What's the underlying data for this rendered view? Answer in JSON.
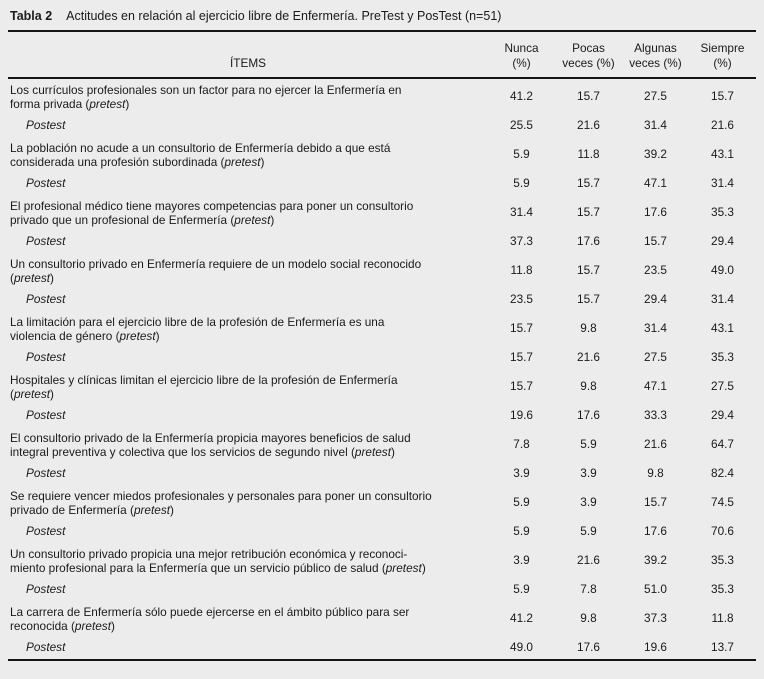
{
  "colors": {
    "background": "#ececec",
    "text": "#1a1a1a",
    "rule": "#141414"
  },
  "table": {
    "label": "Tabla 2",
    "title": "Actitudes en relación al ejercicio libre de Enfermería. PreTest y PosTest (n=51)",
    "items_header": "ÍTEMS",
    "columns": [
      {
        "line1": "Nunca",
        "line2": "(%)"
      },
      {
        "line1": "Pocas",
        "line2": "veces (%)"
      },
      {
        "line1": "Algunas",
        "line2": "veces (%)"
      },
      {
        "line1": "Siempre",
        "line2": "(%)"
      }
    ],
    "postest_label": "Postest",
    "items": [
      {
        "lines": [
          "Los currículos profesionales son un factor para no ejercer la Enfermería en",
          "forma privada (pretest)"
        ],
        "pretest": [
          "41.2",
          "15.7",
          "27.5",
          "15.7"
        ],
        "postest": [
          "25.5",
          "21.6",
          "31.4",
          "21.6"
        ]
      },
      {
        "lines": [
          "La población no acude a un consultorio de Enfermería debido a que está",
          "considerada una profesión subordinada (pretest)"
        ],
        "pretest": [
          "5.9",
          "11.8",
          "39.2",
          "43.1"
        ],
        "postest": [
          "5.9",
          "15.7",
          "47.1",
          "31.4"
        ]
      },
      {
        "lines": [
          "El profesional médico tiene mayores competencias para poner un consultorio",
          "privado que un profesional de Enfermería (pretest)"
        ],
        "pretest": [
          "31.4",
          "15.7",
          "17.6",
          "35.3"
        ],
        "postest": [
          "37.3",
          "17.6",
          "15.7",
          "29.4"
        ]
      },
      {
        "lines": [
          "Un consultorio privado en Enfermería requiere de un modelo social reconocido",
          "(pretest)"
        ],
        "pretest": [
          "11.8",
          "15.7",
          "23.5",
          "49.0"
        ],
        "postest": [
          "23.5",
          "15.7",
          "29.4",
          "31.4"
        ]
      },
      {
        "lines": [
          "La limitación para el ejercicio libre de la profesión de Enfermería es una",
          "violencia de género (pretest)"
        ],
        "pretest": [
          "15.7",
          "9.8",
          "31.4",
          "43.1"
        ],
        "postest": [
          "15.7",
          "21.6",
          "27.5",
          "35.3"
        ]
      },
      {
        "lines": [
          "Hospitales y clínicas limitan el ejercicio libre de la profesión de Enfermería",
          "(pretest)"
        ],
        "pretest": [
          "15.7",
          "9.8",
          "47.1",
          "27.5"
        ],
        "postest": [
          "19.6",
          "17.6",
          "33.3",
          "29.4"
        ]
      },
      {
        "lines": [
          "El consultorio privado de la Enfermería propicia mayores beneficios de salud",
          "integral preventiva y colectiva que los servicios de segundo nivel (pretest)"
        ],
        "pretest": [
          "7.8",
          "5.9",
          "21.6",
          "64.7"
        ],
        "postest": [
          "3.9",
          "3.9",
          "9.8",
          "82.4"
        ]
      },
      {
        "lines": [
          "Se requiere vencer miedos profesionales y personales para poner un consultorio",
          "privado de Enfermería (pretest)"
        ],
        "pretest": [
          "5.9",
          "3.9",
          "15.7",
          "74.5"
        ],
        "postest": [
          "5.9",
          "5.9",
          "17.6",
          "70.6"
        ]
      },
      {
        "lines": [
          "Un consultorio privado propicia una mejor retribución económica y reconoci-",
          "miento profesional para la Enfermería que un servicio público de salud (pretest)"
        ],
        "pretest": [
          "3.9",
          "21.6",
          "39.2",
          "35.3"
        ],
        "postest": [
          "5.9",
          "7.8",
          "51.0",
          "35.3"
        ]
      },
      {
        "lines": [
          "La carrera de Enfermería sólo puede ejercerse en el ámbito público para ser",
          "reconocida (pretest)"
        ],
        "pretest": [
          "41.2",
          "9.8",
          "37.3",
          "11.8"
        ],
        "postest": [
          "49.0",
          "17.6",
          "19.6",
          "13.7"
        ]
      }
    ]
  }
}
